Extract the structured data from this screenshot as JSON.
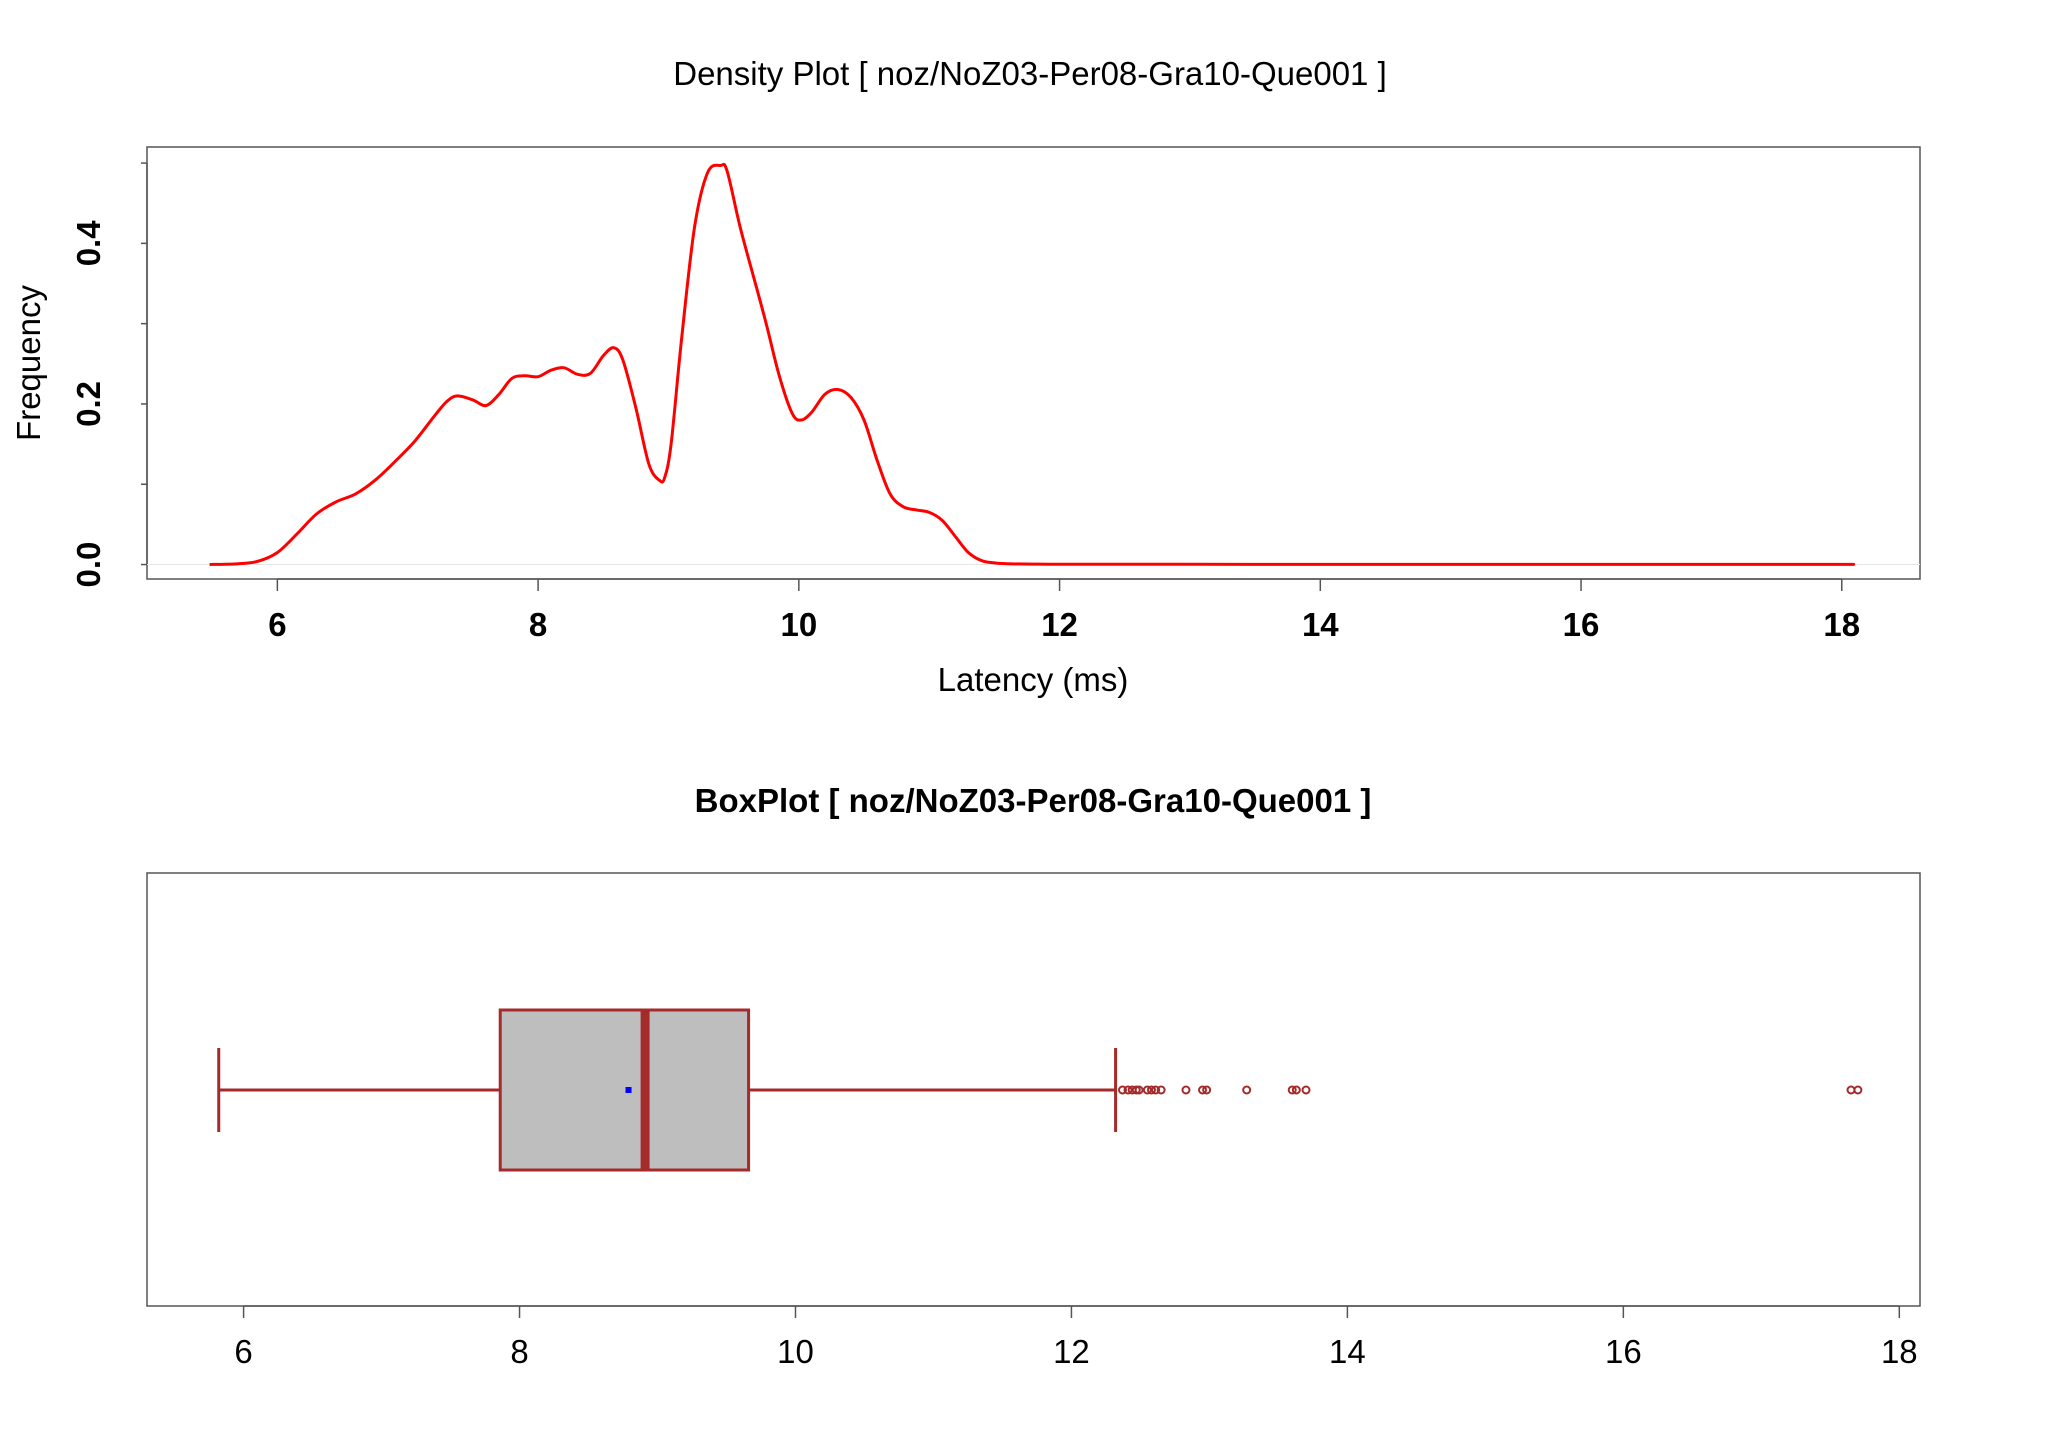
{
  "chart_data": [
    {
      "type": "line",
      "title": "Density Plot [ noz/NoZ03-Per08-Gra10-Que001 ]",
      "xlabel": "Latency (ms)",
      "ylabel": "Frequency",
      "xlim": [
        5.0,
        18.6
      ],
      "ylim": [
        -0.018,
        0.52
      ],
      "x_ticks": [
        6,
        8,
        10,
        12,
        14,
        16,
        18
      ],
      "x_tick_labels": [
        "6",
        "8",
        "10",
        "12",
        "14",
        "16",
        "18"
      ],
      "y_ticks": [
        0.0,
        0.1,
        0.2,
        0.3,
        0.4,
        0.5
      ],
      "y_tick_labels": [
        "0.0",
        "",
        "0.2",
        "",
        "0.4",
        ""
      ],
      "line_color": "#ff0000",
      "series": [
        {
          "x": [
            5.48,
            5.7,
            5.85,
            6.0,
            6.15,
            6.3,
            6.45,
            6.6,
            6.75,
            6.9,
            7.05,
            7.2,
            7.3,
            7.38,
            7.5,
            7.6,
            7.7,
            7.8,
            7.9,
            8.0,
            8.1,
            8.2,
            8.3,
            8.4,
            8.5,
            8.58,
            8.65,
            8.75,
            8.85,
            8.93,
            8.97,
            9.02,
            9.1,
            9.2,
            9.3,
            9.4,
            9.45,
            9.55,
            9.65,
            9.75,
            9.85,
            9.95,
            10.02,
            10.1,
            10.2,
            10.3,
            10.4,
            10.5,
            10.6,
            10.7,
            10.8,
            10.9,
            11.0,
            11.1,
            11.2,
            11.3,
            11.4,
            11.5,
            11.6,
            11.8,
            12.0,
            12.5,
            13.0,
            13.5,
            14.0,
            15.0,
            16.0,
            17.0,
            18.0,
            18.05
          ],
          "y": [
            0.0,
            0.001,
            0.004,
            0.015,
            0.038,
            0.063,
            0.078,
            0.088,
            0.105,
            0.128,
            0.153,
            0.184,
            0.203,
            0.21,
            0.205,
            0.198,
            0.212,
            0.232,
            0.235,
            0.234,
            0.242,
            0.245,
            0.237,
            0.238,
            0.26,
            0.27,
            0.255,
            0.195,
            0.125,
            0.105,
            0.108,
            0.15,
            0.28,
            0.42,
            0.488,
            0.497,
            0.49,
            0.42,
            0.36,
            0.3,
            0.235,
            0.188,
            0.18,
            0.19,
            0.212,
            0.218,
            0.208,
            0.18,
            0.13,
            0.088,
            0.072,
            0.068,
            0.065,
            0.055,
            0.035,
            0.015,
            0.005,
            0.002,
            0.001,
            0.0005,
            0.0003,
            0.0003,
            0.0003,
            0.0002,
            0.0002,
            0.0002,
            0.0002,
            0.0002,
            0.0002,
            0.0002
          ]
        }
      ]
    },
    {
      "type": "box",
      "title": "BoxPlot [ noz/NoZ03-Per08-Gra10-Que001 ]",
      "xlim": [
        5.3,
        18.15
      ],
      "x_ticks": [
        6,
        8,
        10,
        12,
        14,
        16,
        18
      ],
      "x_tick_labels": [
        "6",
        "8",
        "10",
        "12",
        "14",
        "16",
        "18"
      ],
      "orientation": "horizontal",
      "box_fill": "#bebebe",
      "box_border": "#a52a2a",
      "median_color": "#a52a2a",
      "mean_color": "#0000ff",
      "whisker_low": 5.82,
      "q1": 7.86,
      "median": 8.91,
      "q3": 9.66,
      "whisker_high": 12.32,
      "mean": 8.79,
      "outliers": [
        12.37,
        12.41,
        12.44,
        12.47,
        12.49,
        12.55,
        12.58,
        12.61,
        12.65,
        12.83,
        12.95,
        12.98,
        13.27,
        13.6,
        13.63,
        13.7,
        17.65,
        17.7
      ]
    }
  ]
}
